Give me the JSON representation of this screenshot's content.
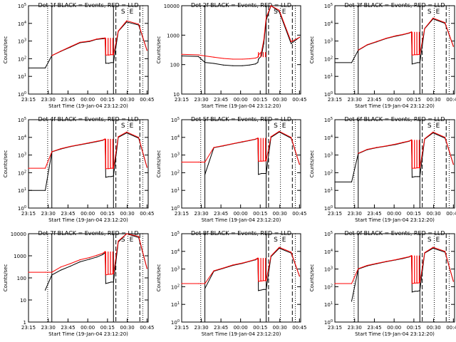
{
  "chart_data": [
    {
      "type": "line",
      "title": "Det 1f BLACK = Events, RED = LLD",
      "ylabel": "Counts/sec",
      "xlabel": "Start Time (19-Jan-04 23:12:20)",
      "x_ticks": [
        "23:15",
        "23:30",
        "23:45",
        "00:00",
        "00:15",
        "00:30",
        "00:45"
      ],
      "y_scale": "log",
      "ylim": [
        1,
        100000
      ],
      "y_ticks": [
        "10^0",
        "10^1",
        "10^2",
        "10^3",
        "10^4",
        "10^5"
      ],
      "markers": [
        "S",
        "E"
      ],
      "series": [
        {
          "name": "Events",
          "color": "#000000",
          "values": [
            30,
            30,
            150,
            260,
            450,
            800,
            950,
            1250,
            1350,
            1400,
            55,
            55,
            60,
            60,
            3500,
            12000,
            8000,
            300
          ]
        },
        {
          "name": "LLD",
          "color": "#ff0000",
          "values": [
            null,
            null,
            150,
            270,
            480,
            850,
            1000,
            1300,
            1450,
            1500,
            160,
            160,
            170,
            170,
            3700,
            14000,
            9000,
            300
          ]
        }
      ]
    },
    {
      "type": "line",
      "title": "Det 2f BLACK = Events, RED = LLD",
      "ylabel": "Counts/sec",
      "xlabel": "Start Time (19-Jan-04 23:12:20)",
      "x_ticks": [
        "23:15",
        "23:30",
        "23:45",
        "00:00",
        "00:15",
        "00:30",
        "00:45"
      ],
      "y_scale": "log",
      "ylim": [
        10,
        13000
      ],
      "y_ticks": [
        "10",
        "100",
        "1000",
        "10000"
      ],
      "markers": [
        "S",
        "E"
      ],
      "series": [
        {
          "name": "Events",
          "color": "#000000",
          "values": [
            220,
            210,
            130,
            120,
            105,
            100,
            100,
            105,
            115,
            130,
            170,
            220,
            600,
            4000,
            13000,
            8000,
            600,
            1000
          ]
        },
        {
          "name": "LLD",
          "color": "#ff0000",
          "values": [
            250,
            240,
            220,
            200,
            180,
            170,
            170,
            175,
            185,
            200,
            240,
            300,
            800,
            5000,
            13000,
            9000,
            700,
            1000
          ]
        }
      ]
    },
    {
      "type": "line",
      "title": "Det 3f BLACK = Events, RED = LLD",
      "ylabel": "Counts/sec",
      "xlabel": "Start Time (19-Jan-04 23:12:20)",
      "x_ticks": [
        "23:15",
        "23:30",
        "23:45",
        "00:00",
        "00:15",
        "00:30",
        "00:45"
      ],
      "y_scale": "log",
      "ylim": [
        1,
        100000
      ],
      "y_ticks": [
        "10^0",
        "10^1",
        "10^2",
        "10^3",
        "10^4",
        "10^5"
      ],
      "markers": [
        "S",
        "E"
      ],
      "series": [
        {
          "name": "Events",
          "color": "#000000",
          "values": [
            60,
            60,
            300,
            600,
            900,
            1400,
            1900,
            2300,
            2800,
            3200,
            50,
            55,
            60,
            60,
            5000,
            18000,
            10000,
            500
          ]
        },
        {
          "name": "LLD",
          "color": "#ff0000",
          "values": [
            null,
            null,
            310,
            620,
            950,
            1450,
            2000,
            2400,
            2900,
            3300,
            160,
            170,
            170,
            180,
            5200,
            20000,
            11000,
            500
          ]
        }
      ]
    },
    {
      "type": "line",
      "title": "Det 4f BLACK = Events, RED = LLD",
      "ylabel": "Counts/sec",
      "xlabel": "Start Time (19-Jan-04 23:12:20)",
      "x_ticks": [
        "23:15",
        "23:30",
        "23:45",
        "00:00",
        "00:15",
        "00:30",
        "00:45"
      ],
      "y_scale": "log",
      "ylim": [
        1,
        100000
      ],
      "y_ticks": [
        "10^0",
        "10^1",
        "10^2",
        "10^3",
        "10^4",
        "10^5"
      ],
      "markers": [
        "S",
        "E"
      ],
      "series": [
        {
          "name": "Events",
          "color": "#000000",
          "values": [
            10,
            10,
            1500,
            2200,
            3000,
            3800,
            4800,
            5800,
            6800,
            8000,
            55,
            60,
            60,
            65,
            10000,
            18000,
            9000,
            200
          ]
        },
        {
          "name": "LLD",
          "color": "#ff0000",
          "values": [
            180,
            180,
            1550,
            2300,
            3100,
            3900,
            5000,
            6000,
            7000,
            8200,
            170,
            170,
            180,
            180,
            11000,
            20000,
            10000,
            200
          ]
        }
      ]
    },
    {
      "type": "line",
      "title": "Det 5f BLACK = Events, RED = LLD",
      "ylabel": "Counts/sec",
      "xlabel": "Start Time (19-Jan-04 23:12:20)",
      "x_ticks": [
        "23:15",
        "23:30",
        "23:45",
        "00:00",
        "00:15",
        "00:30",
        "00:45"
      ],
      "y_scale": "log",
      "ylim": [
        1,
        100000
      ],
      "y_ticks": [
        "10^0",
        "10^1",
        "10^2",
        "10^3",
        "10^4",
        "10^5"
      ],
      "markers": [
        "S",
        "E"
      ],
      "series": [
        {
          "name": "Events",
          "color": "#000000",
          "values": [
            null,
            null,
            80,
            2600,
            3300,
            4300,
            5500,
            6600,
            7800,
            9000,
            80,
            90,
            90,
            90,
            10000,
            20000,
            9000,
            300
          ]
        },
        {
          "name": "LLD",
          "color": "#ff0000",
          "values": [
            400,
            400,
            400,
            2700,
            3400,
            4400,
            5700,
            6800,
            8000,
            9200,
            450,
            450,
            460,
            470,
            11000,
            22000,
            10000,
            300
          ]
        }
      ]
    },
    {
      "type": "line",
      "title": "Det 6f BLACK = Events, RED = LLD",
      "ylabel": "Counts/sec",
      "xlabel": "Start Time (19-Jan-04 23:12:20)",
      "x_ticks": [
        "23:15",
        "23:30",
        "23:45",
        "00:00",
        "00:15",
        "00:30",
        "00:45"
      ],
      "y_scale": "log",
      "ylim": [
        1,
        100000
      ],
      "y_ticks": [
        "10^0",
        "10^1",
        "10^2",
        "10^3",
        "10^4",
        "10^5"
      ],
      "markers": [
        "S",
        "E"
      ],
      "series": [
        {
          "name": "Events",
          "color": "#000000",
          "values": [
            30,
            30,
            1200,
            2000,
            2600,
            3200,
            4000,
            5000,
            6000,
            7000,
            55,
            60,
            60,
            60,
            8000,
            18000,
            9000,
            300
          ]
        },
        {
          "name": "LLD",
          "color": "#ff0000",
          "values": [
            null,
            null,
            1250,
            2100,
            2700,
            3300,
            4200,
            5200,
            6200,
            7200,
            180,
            180,
            190,
            190,
            8500,
            20000,
            10000,
            300
          ]
        }
      ]
    },
    {
      "type": "line",
      "title": "Det 7f BLACK = Events, RED = LLD",
      "ylabel": "Counts/sec",
      "xlabel": "Start Time (19-Jan-04 23:12:20)",
      "x_ticks": [
        "23:15",
        "23:30",
        "23:45",
        "00:00",
        "00:15",
        "00:30",
        "00:45"
      ],
      "y_scale": "log",
      "ylim": [
        1,
        12000
      ],
      "y_ticks": [
        "1",
        "10",
        "100",
        "1000",
        "10000"
      ],
      "markers": [
        "S",
        "E"
      ],
      "series": [
        {
          "name": "Events",
          "color": "#000000",
          "values": [
            null,
            30,
            150,
            250,
            380,
            600,
            800,
            1000,
            1300,
            1600,
            60,
            65,
            70,
            70,
            5000,
            12000,
            8000,
            300
          ]
        },
        {
          "name": "LLD",
          "color": "#ff0000",
          "values": [
            200,
            200,
            200,
            350,
            500,
            750,
            950,
            1200,
            1500,
            1800,
            150,
            160,
            160,
            170,
            5500,
            12000,
            9000,
            300
          ]
        }
      ]
    },
    {
      "type": "line",
      "title": "Det 8f BLACK = Events, RED = LLD",
      "ylabel": "Counts/sec",
      "xlabel": "Start Time (19-Jan-04 23:12:20)",
      "x_ticks": [
        "23:15",
        "23:30",
        "23:45",
        "00:00",
        "00:15",
        "00:30",
        "00:45"
      ],
      "y_scale": "log",
      "ylim": [
        1,
        100000
      ],
      "y_ticks": [
        "10^0",
        "10^1",
        "10^2",
        "10^3",
        "10^4",
        "10^5"
      ],
      "markers": [
        "S",
        "E"
      ],
      "series": [
        {
          "name": "Events",
          "color": "#000000",
          "values": [
            null,
            null,
            80,
            750,
            1100,
            1600,
            2100,
            2700,
            3300,
            4000,
            60,
            65,
            70,
            70,
            5000,
            15000,
            8000,
            400
          ]
        },
        {
          "name": "LLD",
          "color": "#ff0000",
          "values": [
            150,
            150,
            150,
            800,
            1150,
            1700,
            2200,
            2800,
            3500,
            4200,
            200,
            210,
            220,
            220,
            5500,
            17000,
            9000,
            400
          ]
        }
      ]
    },
    {
      "type": "line",
      "title": "Det 9f BLACK = Events, RED = LLD",
      "ylabel": "Counts/sec",
      "xlabel": "Start Time (19-Jan-04 23:12:20)",
      "x_ticks": [
        "23:15",
        "23:30",
        "23:45",
        "00:00",
        "00:15",
        "00:30",
        "00:45"
      ],
      "y_scale": "log",
      "ylim": [
        1,
        100000
      ],
      "y_ticks": [
        "10^0",
        "10^1",
        "10^2",
        "10^3",
        "10^4",
        "10^5"
      ],
      "markers": [
        "S",
        "E"
      ],
      "series": [
        {
          "name": "Events",
          "color": "#000000",
          "values": [
            null,
            15,
            1000,
            1500,
            2000,
            2600,
            3300,
            4000,
            4800,
            5500,
            50,
            55,
            55,
            60,
            8000,
            15000,
            9000,
            200
          ]
        },
        {
          "name": "LLD",
          "color": "#ff0000",
          "values": [
            150,
            150,
            1050,
            1600,
            2100,
            2700,
            3400,
            4200,
            5000,
            5800,
            150,
            160,
            160,
            170,
            8500,
            17000,
            10000,
            200
          ]
        }
      ]
    }
  ]
}
